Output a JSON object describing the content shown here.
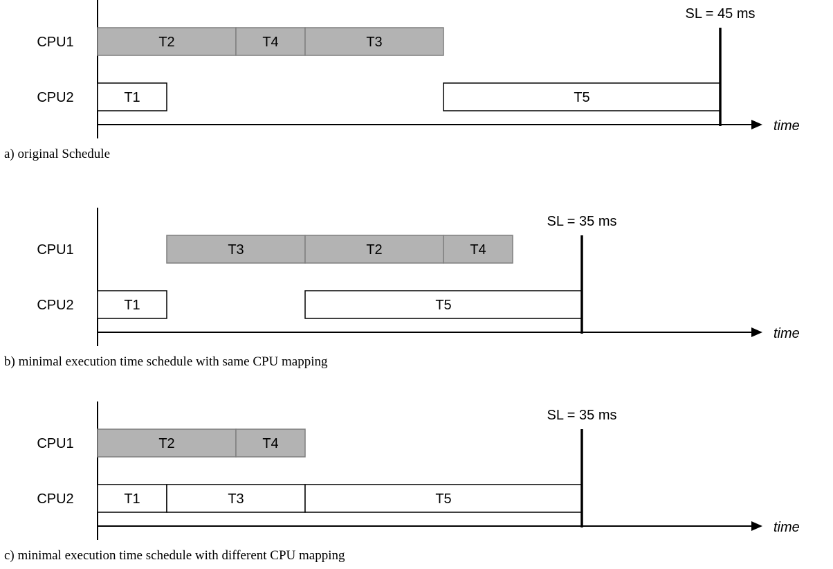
{
  "colors": {
    "cpu1_fill": "#b3b3b3",
    "cpu1_stroke": "#7f7f7f",
    "cpu2_fill": "#ffffff",
    "cpu2_stroke": "#000000",
    "axis": "#000000",
    "text": "#000000"
  },
  "time_unit_ms": 5,
  "axis_label": "time",
  "panels": [
    {
      "caption": "a) original Schedule",
      "sl_label": "SL = 45 ms",
      "sl_ms": 45,
      "rows": [
        {
          "cpu": "CPU1",
          "style": "cpu1",
          "tasks": [
            {
              "name": "T2",
              "start": 0,
              "end": 10
            },
            {
              "name": "T4",
              "start": 10,
              "end": 15
            },
            {
              "name": "T3",
              "start": 15,
              "end": 25
            }
          ]
        },
        {
          "cpu": "CPU2",
          "style": "cpu2",
          "tasks": [
            {
              "name": "T1",
              "start": 0,
              "end": 5
            },
            {
              "name": "T5",
              "start": 25,
              "end": 45
            }
          ]
        }
      ]
    },
    {
      "caption": "b) minimal execution time schedule with same CPU mapping",
      "sl_label": "SL = 35 ms",
      "sl_ms": 35,
      "rows": [
        {
          "cpu": "CPU1",
          "style": "cpu1",
          "tasks": [
            {
              "name": "T3",
              "start": 5,
              "end": 15
            },
            {
              "name": "T2",
              "start": 15,
              "end": 25
            },
            {
              "name": "T4",
              "start": 25,
              "end": 30
            }
          ]
        },
        {
          "cpu": "CPU2",
          "style": "cpu2",
          "tasks": [
            {
              "name": "T1",
              "start": 0,
              "end": 5
            },
            {
              "name": "T5",
              "start": 15,
              "end": 35
            }
          ]
        }
      ]
    },
    {
      "caption": "c) minimal execution time schedule with different CPU mapping",
      "sl_label": "SL = 35 ms",
      "sl_ms": 35,
      "rows": [
        {
          "cpu": "CPU1",
          "style": "cpu1",
          "tasks": [
            {
              "name": "T2",
              "start": 0,
              "end": 10
            },
            {
              "name": "T4",
              "start": 10,
              "end": 15
            }
          ]
        },
        {
          "cpu": "CPU2",
          "style": "cpu2",
          "tasks": [
            {
              "name": "T1",
              "start": 0,
              "end": 5
            },
            {
              "name": "T3",
              "start": 5,
              "end": 15
            },
            {
              "name": "T5",
              "start": 15,
              "end": 35
            }
          ]
        }
      ]
    }
  ]
}
